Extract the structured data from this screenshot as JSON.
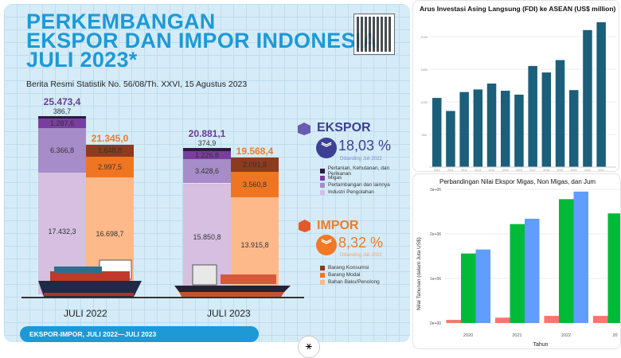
{
  "infographic": {
    "title_lines": [
      "PERKEMBANGAN",
      "EKSPOR DAN IMPOR INDONESIA",
      "JULI 2023*"
    ],
    "subtitle": "Berita Resmi Statistik No. 56/08/Th. XXVI, 15 Agustus 2023",
    "periods": [
      "JULI 2022",
      "JULI 2023"
    ],
    "banner": "EKSPOR-IMPOR, JULI 2022—JULI 2023",
    "ekspor": {
      "label": "EKSPOR",
      "change": "18,03 %",
      "direction": "down",
      "compare": "Dibanding Juli 2022",
      "color": "#3d3f94",
      "legend": [
        "Pertanian, Kehutanan, dan Perikanan",
        "Migas",
        "Pertambangan dan lainnya",
        "Industri Pengolahan"
      ],
      "colors": [
        "#2e1a40",
        "#7a3ea0",
        "#a68cc8",
        "#d6bfe1"
      ],
      "totals": [
        "25.473,4",
        "20.881,1"
      ],
      "values": [
        [
          386.7,
          1287.6,
          6366.8,
          17432.3
        ],
        [
          374.9,
          1226.8,
          3428.6,
          15850.8
        ]
      ],
      "labels": [
        [
          "386,7",
          "1.287,6",
          "6.366,8",
          "17.432,3"
        ],
        [
          "374,9",
          "1.226,8",
          "3.428,6",
          "15.850,8"
        ]
      ]
    },
    "impor": {
      "label": "IMPOR",
      "change": "8,32 %",
      "direction": "down",
      "compare": "Dibanding Juli 2022",
      "color": "#f07a26",
      "legend": [
        "Barang Konsumsi",
        "Barang Modal",
        "Bahan Baku/Penolong"
      ],
      "colors": [
        "#8c3b1f",
        "#f07522",
        "#fdb98a"
      ],
      "totals": [
        "21.345,0",
        "19.568,4"
      ],
      "values": [
        [
          1648.8,
          2997.5,
          16698.7
        ],
        [
          2091.8,
          3560.8,
          13915.8
        ]
      ],
      "labels": [
        [
          "1.648,8",
          "2.997,5",
          "16.698,7"
        ],
        [
          "2.091,8",
          "3.560,8",
          "13.915,8"
        ]
      ]
    }
  },
  "chart_data": [
    {
      "type": "bar",
      "title": "Arus Investasi Asing Langsung (FDI) ke ASEAN (US$ million)",
      "categories": [
        "2010",
        "2011",
        "2012",
        "2013",
        "2014",
        "2015",
        "2016",
        "2017",
        "2018",
        "2019",
        "2020",
        "2021",
        "2022"
      ],
      "values": [
        106000,
        86000,
        115000,
        119000,
        128000,
        117000,
        111000,
        155000,
        145000,
        164000,
        118000,
        210000,
        222000
      ],
      "yticks": [
        "50K",
        "100K",
        "150K",
        "200K"
      ],
      "ylim": [
        0,
        230000
      ],
      "color": "#1b5f7a",
      "grid": true
    },
    {
      "type": "bar",
      "title": "Perbandingan Nilai Ekspor Migas, Non Migas, dan Jum",
      "xlabel": "Tahun",
      "ylabel": "Nilai Tahunan (dalam Juta US$)",
      "categories": [
        "2020",
        "2021",
        "2022",
        "20"
      ],
      "yticks": [
        "0e+00",
        "1e+06",
        "2e+06",
        "3e+06"
      ],
      "ylim": [
        0,
        3000000
      ],
      "grid": true,
      "series": [
        {
          "color": "#f8766d",
          "values": [
            70000,
            120000,
            160000,
            160000
          ]
        },
        {
          "color": "#00ba38",
          "values": [
            1560000,
            2220000,
            2780000,
            2460000
          ]
        },
        {
          "color": "#619cff",
          "values": [
            1650000,
            2340000,
            2950000,
            null
          ]
        }
      ]
    }
  ]
}
